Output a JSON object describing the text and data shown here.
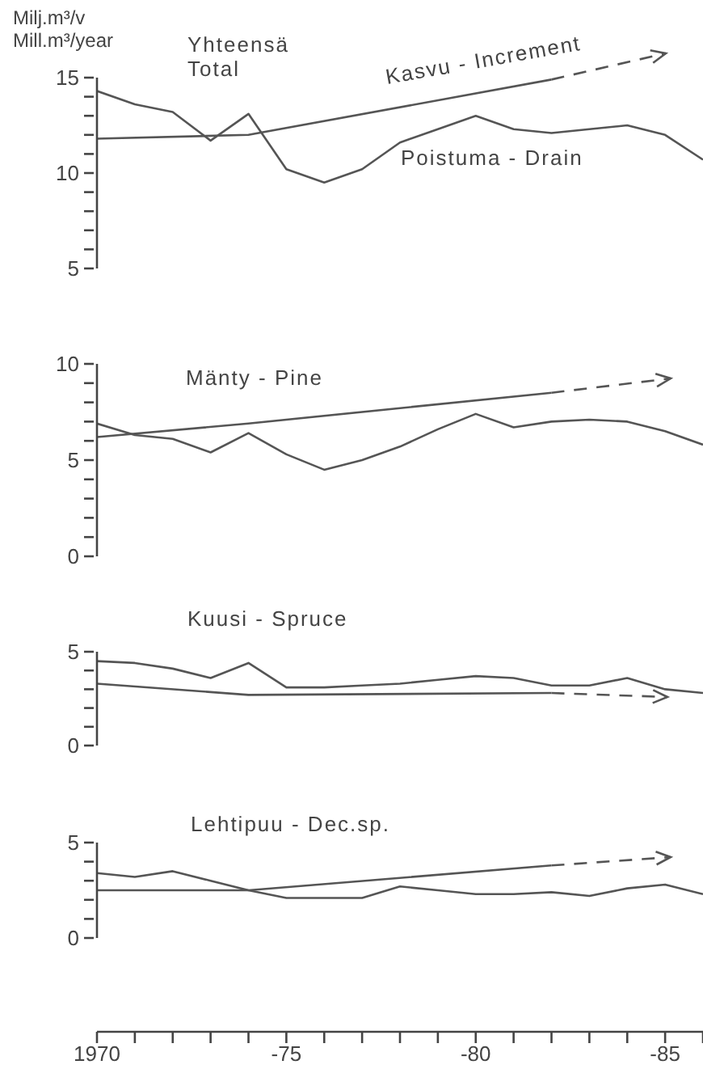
{
  "chart_data": [
    {
      "type": "line",
      "title": "Yhteensä\nTotal",
      "ylabel": "Milj.m³/v\nMill.m³/year",
      "ylim": [
        5,
        15
      ],
      "yticks": [
        5,
        {
          "value": 6,
          "label": null
        },
        {
          "value": 7,
          "label": null
        },
        {
          "value": 8,
          "label": null
        },
        {
          "value": 9,
          "label": null
        },
        10,
        {
          "value": 11,
          "label": null
        },
        {
          "value": 12,
          "label": null
        },
        {
          "value": 13,
          "label": null
        },
        {
          "value": 14,
          "label": null
        },
        15
      ],
      "tick_labels": "y",
      "categories": [
        "1970",
        null,
        null,
        null,
        null,
        "-75",
        null,
        null,
        null,
        null,
        "-80",
        null,
        null,
        null,
        null,
        "-85",
        null
      ],
      "annotations": [
        "Kasvu - Increment",
        "Poistuma - Drain"
      ],
      "series": [
        {
          "color": "#555555",
          "values": [
            14.3,
            13.6,
            13.2,
            11.7,
            13.1,
            10.2,
            9.5,
            10.2,
            11.6,
            12.3,
            13.0,
            12.3,
            12.1,
            12.3,
            12.5,
            12.0,
            10.7
          ]
        },
        {
          "color": "#555555",
          "values": [
            11.8,
            null,
            null,
            null,
            12.0,
            null,
            null,
            null,
            null,
            null,
            null,
            null,
            14.9,
            null,
            null,
            null,
            null
          ]
        }
      ]
    },
    {
      "type": "line",
      "title": "Mänty - Pine",
      "ylim": [
        0,
        10
      ],
      "yticks": [
        0,
        {
          "value": 1,
          "label": null
        },
        {
          "value": 2,
          "label": null
        },
        {
          "value": 3,
          "label": null
        },
        {
          "value": 4,
          "label": null
        },
        5,
        {
          "value": 6,
          "label": null
        },
        {
          "value": 7,
          "label": null
        },
        {
          "value": 8,
          "label": null
        },
        {
          "value": 9,
          "label": null
        },
        10
      ],
      "tick_labels": "y",
      "categories": [
        "1970",
        null,
        null,
        null,
        null,
        "-75",
        null,
        null,
        null,
        null,
        "-80",
        null,
        null,
        null,
        null,
        "-85",
        null
      ],
      "series": [
        {
          "color": "#555555",
          "values": [
            6.9,
            6.3,
            6.1,
            5.4,
            6.4,
            5.3,
            4.5,
            5.0,
            5.7,
            6.6,
            7.4,
            6.7,
            7.0,
            7.1,
            7.0,
            6.5,
            5.8
          ]
        },
        {
          "color": "#555555",
          "values": [
            6.2,
            null,
            null,
            null,
            6.9,
            null,
            null,
            null,
            null,
            null,
            null,
            null,
            8.5,
            null,
            null,
            null,
            null
          ]
        }
      ]
    },
    {
      "type": "line",
      "title": "Kuusi - Spruce",
      "ylim": [
        0,
        5
      ],
      "yticks": [
        0,
        {
          "value": 1,
          "label": null
        },
        {
          "value": 2,
          "label": null
        },
        {
          "value": 3,
          "label": null
        },
        {
          "value": 4,
          "label": null
        },
        5
      ],
      "tick_labels": "y",
      "categories": [
        "1970",
        null,
        null,
        null,
        null,
        "-75",
        null,
        null,
        null,
        null,
        "-80",
        null,
        null,
        null,
        null,
        "-85",
        null
      ],
      "series": [
        {
          "color": "#555555",
          "values": [
            4.5,
            4.4,
            4.1,
            3.6,
            4.4,
            3.1,
            3.1,
            3.2,
            3.3,
            3.5,
            3.7,
            3.6,
            3.2,
            3.2,
            3.6,
            3.0,
            2.8
          ]
        },
        {
          "color": "#555555",
          "values": [
            3.3,
            null,
            null,
            null,
            2.7,
            null,
            null,
            null,
            null,
            null,
            null,
            null,
            2.8,
            null,
            null,
            null,
            null
          ]
        }
      ]
    },
    {
      "type": "line",
      "title": "Lehtipuu - Dec.sp.",
      "ylim": [
        0,
        5
      ],
      "yticks": [
        0,
        {
          "value": 1,
          "label": null
        },
        {
          "value": 2,
          "label": null
        },
        {
          "value": 3,
          "label": null
        },
        {
          "value": 4,
          "label": null
        },
        5
      ],
      "categories": [
        "1970",
        null,
        null,
        null,
        null,
        "-75",
        null,
        null,
        null,
        null,
        "-80",
        null,
        null,
        null,
        null,
        "-85",
        null
      ],
      "series": [
        {
          "color": "#555555",
          "values": [
            3.4,
            3.2,
            3.5,
            3.0,
            2.5,
            2.1,
            2.1,
            2.1,
            2.7,
            2.5,
            2.3,
            2.3,
            2.4,
            2.2,
            2.6,
            2.8,
            2.3
          ]
        },
        {
          "color": "#555555",
          "values": [
            2.5,
            null,
            null,
            null,
            2.5,
            null,
            null,
            null,
            null,
            null,
            null,
            null,
            3.8,
            null,
            null,
            null,
            null
          ]
        }
      ]
    }
  ]
}
